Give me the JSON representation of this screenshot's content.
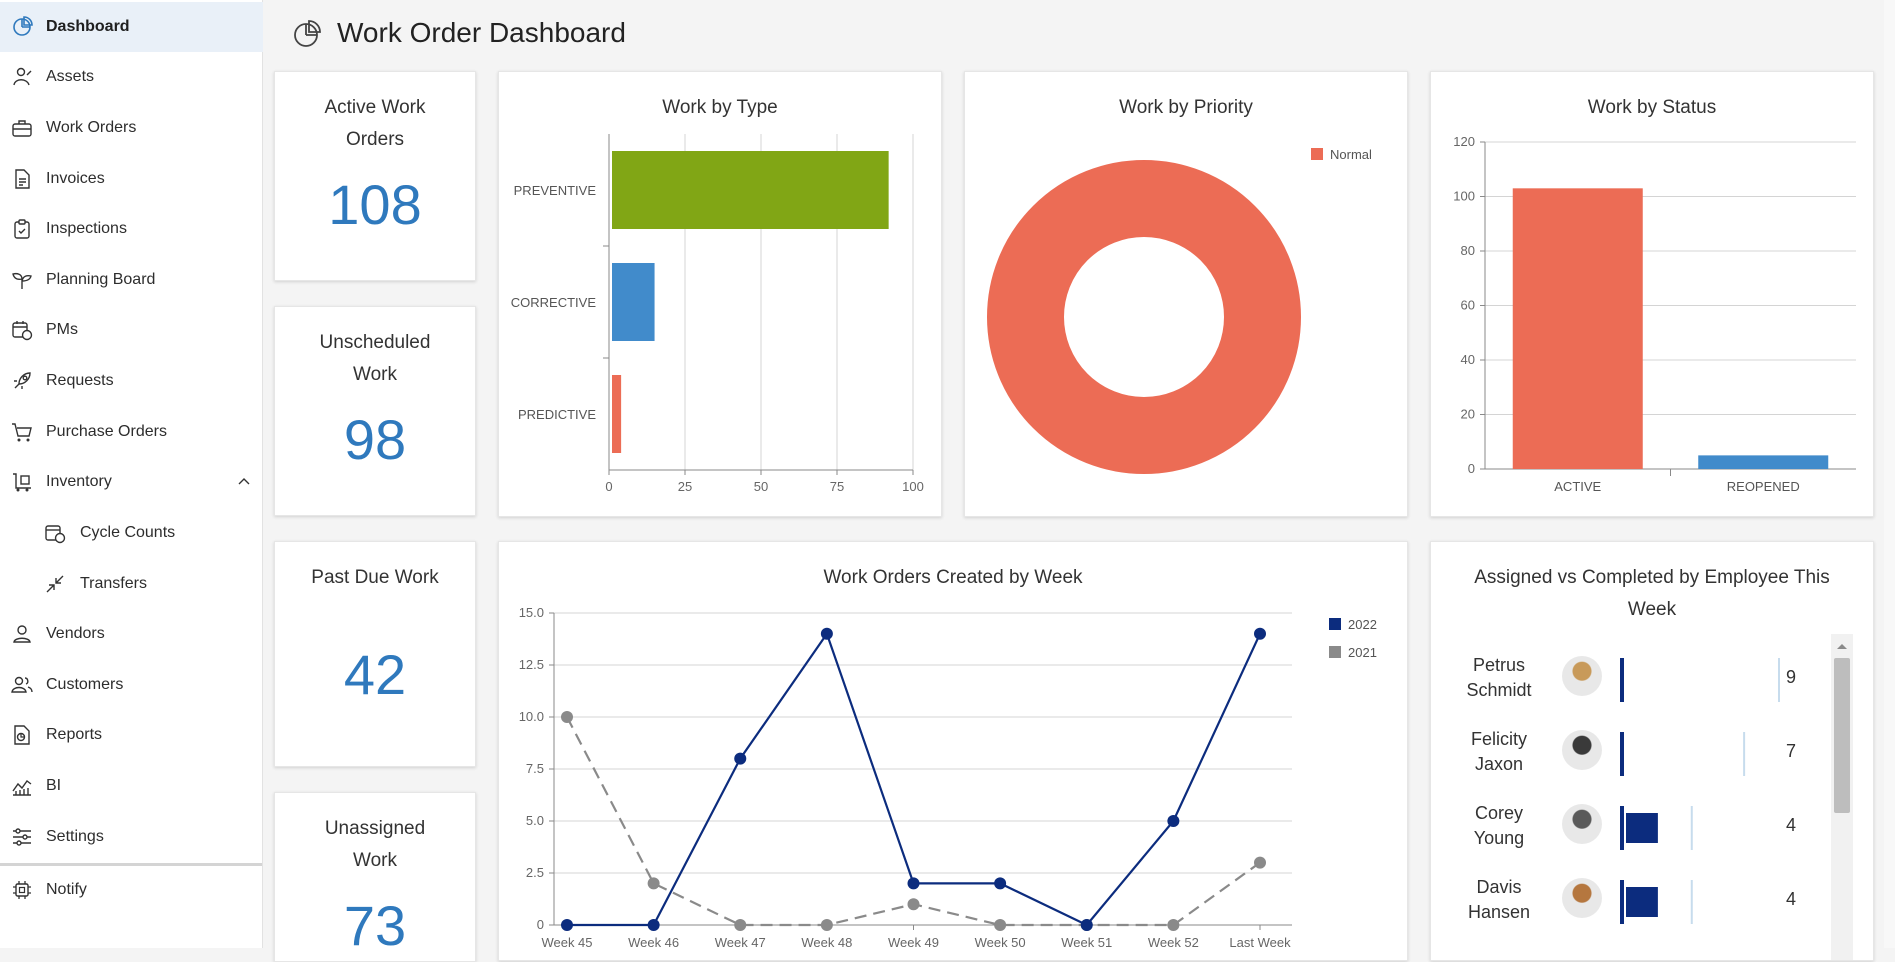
{
  "sidebar": {
    "items": [
      {
        "label": "Dashboard",
        "icon": "pie-chart-icon"
      },
      {
        "label": "Assets",
        "icon": "assets-icon"
      },
      {
        "label": "Work Orders",
        "icon": "toolbox-icon"
      },
      {
        "label": "Invoices",
        "icon": "invoice-icon"
      },
      {
        "label": "Inspections",
        "icon": "clipboard-check-icon"
      },
      {
        "label": "Planning Board",
        "icon": "sprout-icon"
      },
      {
        "label": "PMs",
        "icon": "calendar-clock-icon"
      },
      {
        "label": "Requests",
        "icon": "rocket-icon"
      },
      {
        "label": "Purchase Orders",
        "icon": "cart-icon"
      },
      {
        "label": "Inventory",
        "icon": "forklift-icon"
      },
      {
        "label": "Cycle Counts",
        "icon": "cycle-counts-icon"
      },
      {
        "label": "Transfers",
        "icon": "transfer-arrows-icon"
      },
      {
        "label": "Vendors",
        "icon": "vendor-icon"
      },
      {
        "label": "Customers",
        "icon": "customers-icon"
      },
      {
        "label": "Reports",
        "icon": "reports-icon"
      },
      {
        "label": "BI",
        "icon": "bi-chart-icon"
      },
      {
        "label": "Settings",
        "icon": "sliders-icon"
      },
      {
        "label": "Notify",
        "icon": "chip-icon"
      }
    ]
  },
  "header": {
    "title": "Work Order Dashboard"
  },
  "kpis": {
    "active": {
      "label": "Active Work Orders",
      "value": "108"
    },
    "unscheduled": {
      "label": "Unscheduled Work",
      "value": "98"
    },
    "past_due": {
      "label": "Past Due Work",
      "value": "42"
    },
    "unassigned": {
      "label": "Unassigned Work",
      "value": "73"
    }
  },
  "colors": {
    "accent": "#2f79bd",
    "green": "#81a615",
    "blue": "#418bcb",
    "red": "#ec6c55",
    "navy": "#0c2c7e",
    "gray": "#8a8a8a"
  },
  "employees": {
    "title": "Assigned vs Completed by Employee This Week",
    "rows": [
      {
        "first": "Petrus",
        "last": "Schmidt",
        "count": "9",
        "completed": 0,
        "assigned": 9,
        "avatar": "avatar-petrus"
      },
      {
        "first": "Felicity",
        "last": "Jaxon",
        "count": "7",
        "completed": 0,
        "assigned": 7,
        "avatar": "avatar-felicity"
      },
      {
        "first": "Corey",
        "last": "Young",
        "count": "4",
        "completed": 2,
        "assigned": 4,
        "avatar": "avatar-corey"
      },
      {
        "first": "Davis",
        "last": "Hansen",
        "count": "4",
        "completed": 2,
        "assigned": 4,
        "avatar": "avatar-davis"
      }
    ]
  },
  "chart_data": [
    {
      "type": "bar",
      "orientation": "horizontal",
      "title": "Work by Type",
      "categories": [
        "PREVENTIVE",
        "CORRECTIVE",
        "PREDICTIVE"
      ],
      "values": [
        91,
        14,
        3
      ],
      "colors": [
        "#81a615",
        "#418bcb",
        "#ec6c55"
      ],
      "xlim": [
        0,
        100
      ],
      "xticks": [
        "0",
        "25",
        "50",
        "75",
        "100"
      ],
      "grid": true
    },
    {
      "type": "pie",
      "donut": true,
      "title": "Work by Priority",
      "labels": [
        "Normal"
      ],
      "values": [
        100
      ],
      "colors": [
        "#ec6c55"
      ],
      "legend": "top-right"
    },
    {
      "type": "bar",
      "title": "Work by Status",
      "categories": [
        "ACTIVE",
        "REOPENED"
      ],
      "values": [
        103,
        5
      ],
      "colors": [
        "#ec6c55",
        "#418bcb"
      ],
      "ylim": [
        0,
        120
      ],
      "yticks": [
        "0",
        "20",
        "40",
        "60",
        "80",
        "100",
        "120"
      ],
      "grid": true
    },
    {
      "type": "line",
      "title": "Work Orders Created by Week",
      "categories": [
        "Week 45",
        "Week 46",
        "Week 47",
        "Week 48",
        "Week 49",
        "Week 50",
        "Week 51",
        "Week 52",
        "Last Week"
      ],
      "series": [
        {
          "name": "2022",
          "values": [
            0,
            0,
            8,
            14,
            2,
            2,
            0,
            5,
            14
          ],
          "color": "#0c2c7e",
          "dash": false
        },
        {
          "name": "2021",
          "values": [
            10,
            2,
            0,
            0,
            1,
            0,
            0,
            0,
            3
          ],
          "color": "#8a8a8a",
          "dash": true
        }
      ],
      "ylim": [
        0,
        15
      ],
      "yticks": [
        "0",
        "2.5",
        "5.0",
        "7.5",
        "10.0",
        "12.5",
        "15.0"
      ],
      "legend": "right",
      "grid": true
    }
  ]
}
